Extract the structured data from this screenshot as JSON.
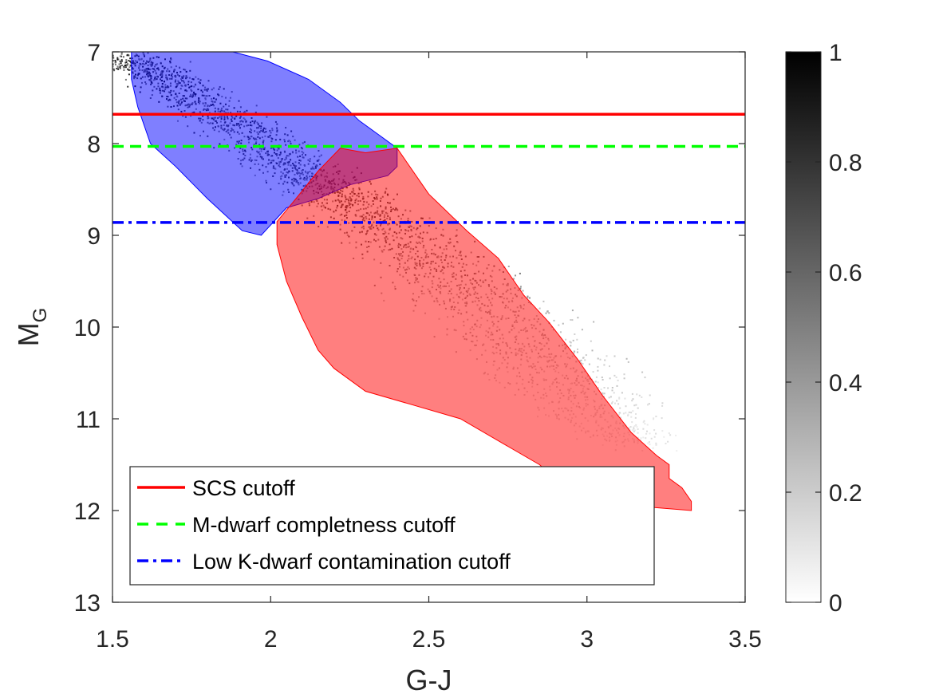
{
  "chart_data": {
    "type": "heatmap",
    "title": "",
    "xlabel": "G-J",
    "ylabel_main": "M",
    "ylabel_sub": "G",
    "xlim": [
      1.5,
      3.5
    ],
    "ylim": [
      7,
      13
    ],
    "y_reversed": true,
    "x_ticks": [
      1.5,
      2,
      2.5,
      3,
      3.5
    ],
    "x_tick_labels": [
      "1.5",
      "2",
      "2.5",
      "3",
      "3.5"
    ],
    "y_ticks": [
      7,
      8,
      9,
      10,
      11,
      12,
      13
    ],
    "y_tick_labels": [
      "7",
      "8",
      "9",
      "10",
      "11",
      "12",
      "13"
    ],
    "grid": false,
    "legend_position": "bottom-left",
    "colorbar": {
      "range": [
        0,
        1
      ],
      "ticks": [
        0,
        0.2,
        0.4,
        0.6,
        0.8,
        1
      ],
      "tick_labels": [
        "0",
        "0.2",
        "0.4",
        "0.6",
        "0.8",
        "1"
      ],
      "colormap": "gray-reversed"
    },
    "density_ridge": [
      {
        "x": 1.52,
        "y": 7.05,
        "width": 0.12,
        "level": 0.95
      },
      {
        "x": 1.65,
        "y": 7.25,
        "width": 0.12,
        "level": 0.95
      },
      {
        "x": 1.8,
        "y": 7.6,
        "width": 0.13,
        "level": 0.9
      },
      {
        "x": 1.95,
        "y": 7.95,
        "width": 0.14,
        "level": 0.85
      },
      {
        "x": 2.1,
        "y": 8.3,
        "width": 0.14,
        "level": 0.8
      },
      {
        "x": 2.25,
        "y": 8.6,
        "width": 0.15,
        "level": 0.8
      },
      {
        "x": 2.4,
        "y": 9.0,
        "width": 0.17,
        "level": 0.7
      },
      {
        "x": 2.55,
        "y": 9.4,
        "width": 0.2,
        "level": 0.55
      },
      {
        "x": 2.7,
        "y": 9.8,
        "width": 0.22,
        "level": 0.4
      },
      {
        "x": 2.85,
        "y": 10.3,
        "width": 0.22,
        "level": 0.3
      },
      {
        "x": 3.0,
        "y": 10.8,
        "width": 0.2,
        "level": 0.2
      },
      {
        "x": 3.15,
        "y": 11.3,
        "width": 0.15,
        "level": 0.12
      }
    ],
    "regions": [
      {
        "id": "blue-region",
        "color": "#0000ff",
        "opacity": 0.5,
        "polygon": [
          [
            1.56,
            7.0
          ],
          [
            1.88,
            7.0
          ],
          [
            1.99,
            7.1
          ],
          [
            2.12,
            7.3
          ],
          [
            2.22,
            7.55
          ],
          [
            2.28,
            7.75
          ],
          [
            2.34,
            7.9
          ],
          [
            2.4,
            8.05
          ],
          [
            2.4,
            8.25
          ],
          [
            2.37,
            8.35
          ],
          [
            2.25,
            8.45
          ],
          [
            2.15,
            8.6
          ],
          [
            2.05,
            8.7
          ],
          [
            1.97,
            9.0
          ],
          [
            1.91,
            8.95
          ],
          [
            1.8,
            8.6
          ],
          [
            1.7,
            8.25
          ],
          [
            1.62,
            8.0
          ],
          [
            1.58,
            7.6
          ],
          [
            1.56,
            7.3
          ]
        ]
      },
      {
        "id": "red-region",
        "color": "#ff0000",
        "opacity": 0.5,
        "polygon": [
          [
            2.15,
            8.3
          ],
          [
            2.22,
            8.05
          ],
          [
            2.3,
            8.1
          ],
          [
            2.4,
            8.05
          ],
          [
            2.5,
            8.55
          ],
          [
            2.62,
            8.95
          ],
          [
            2.72,
            9.25
          ],
          [
            2.8,
            9.65
          ],
          [
            2.88,
            9.95
          ],
          [
            2.97,
            10.35
          ],
          [
            3.05,
            10.75
          ],
          [
            3.14,
            11.15
          ],
          [
            3.22,
            11.4
          ],
          [
            3.26,
            11.5
          ],
          [
            3.26,
            11.65
          ],
          [
            3.3,
            11.75
          ],
          [
            3.33,
            11.9
          ],
          [
            3.33,
            12.0
          ],
          [
            3.15,
            11.95
          ],
          [
            2.95,
            11.8
          ],
          [
            2.85,
            11.5
          ],
          [
            2.75,
            11.3
          ],
          [
            2.6,
            11.0
          ],
          [
            2.45,
            10.85
          ],
          [
            2.3,
            10.7
          ],
          [
            2.2,
            10.45
          ],
          [
            2.15,
            10.25
          ],
          [
            2.1,
            9.9
          ],
          [
            2.05,
            9.5
          ],
          [
            2.02,
            9.1
          ],
          [
            2.02,
            8.85
          ],
          [
            2.08,
            8.6
          ]
        ]
      }
    ],
    "cutoffs": [
      {
        "id": "scs",
        "label": "SCS cutoff",
        "value": 7.68,
        "color": "#ff0000",
        "style": "solid"
      },
      {
        "id": "mdwarf",
        "label": "M-dwarf completness cutoff",
        "value": 8.03,
        "color": "#00ff00",
        "style": "dashed"
      },
      {
        "id": "kdwarf",
        "label": "Low K-dwarf contamination cutoff",
        "value": 8.86,
        "color": "#0000ff",
        "style": "dashdot"
      }
    ]
  }
}
